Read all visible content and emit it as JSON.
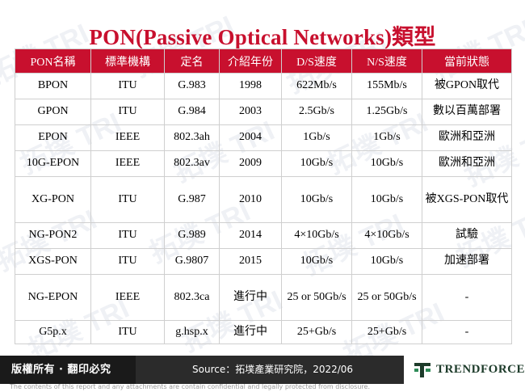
{
  "title": "PON(Passive Optical Networks)類型",
  "table": {
    "headers": [
      "PON名稱",
      "標準機構",
      "定名",
      "介紹年份",
      "D/S速度",
      "N/S速度",
      "當前狀態"
    ],
    "rows": [
      [
        "BPON",
        "ITU",
        "G.983",
        "1998",
        "622Mb/s",
        "155Mb/s",
        "被GPON取代"
      ],
      [
        "GPON",
        "ITU",
        "G.984",
        "2003",
        "2.5Gb/s",
        "1.25Gb/s",
        "數以百萬部署"
      ],
      [
        "EPON",
        "IEEE",
        "802.3ah",
        "2004",
        "1Gb/s",
        "1Gb/s",
        "歐洲和亞洲"
      ],
      [
        "10G-EPON",
        "IEEE",
        "802.3av",
        "2009",
        "10Gb/s",
        "10Gb/s",
        "歐洲和亞洲"
      ],
      [
        "XG-PON",
        "ITU",
        "G.987",
        "2010",
        "10Gb/s",
        "10Gb/s",
        "被XGS-PON取代"
      ],
      [
        "NG-PON2",
        "ITU",
        "G.989",
        "2014",
        "4×10Gb/s",
        "4×10Gb/s",
        "試驗"
      ],
      [
        "XGS-PON",
        "ITU",
        "G.9807",
        "2015",
        "10Gb/s",
        "10Gb/s",
        "加速部署"
      ],
      [
        "NG-EPON",
        "IEEE",
        "802.3ca",
        "進行中",
        "25 or 50Gb/s",
        "25 or 50Gb/s",
        "-"
      ],
      [
        "G5p.x",
        "ITU",
        "g.hsp.x",
        "進行中",
        "25+Gb/s",
        "25+Gb/s",
        "-"
      ]
    ]
  },
  "footer": {
    "rights": "版權所有 · 翻印必究",
    "source": "Source：拓墣產業研究院，2022/06",
    "brand": "TRENDFORCE",
    "disclaimer": "The contents of this report and any attachments are contain confidential and legally protected from disclosure."
  },
  "watermark": "拓墣 TRI",
  "colors": {
    "accent": "#c8102e",
    "footer_bg": "#2b2b2b",
    "logo_green": "#1d3b2a"
  }
}
